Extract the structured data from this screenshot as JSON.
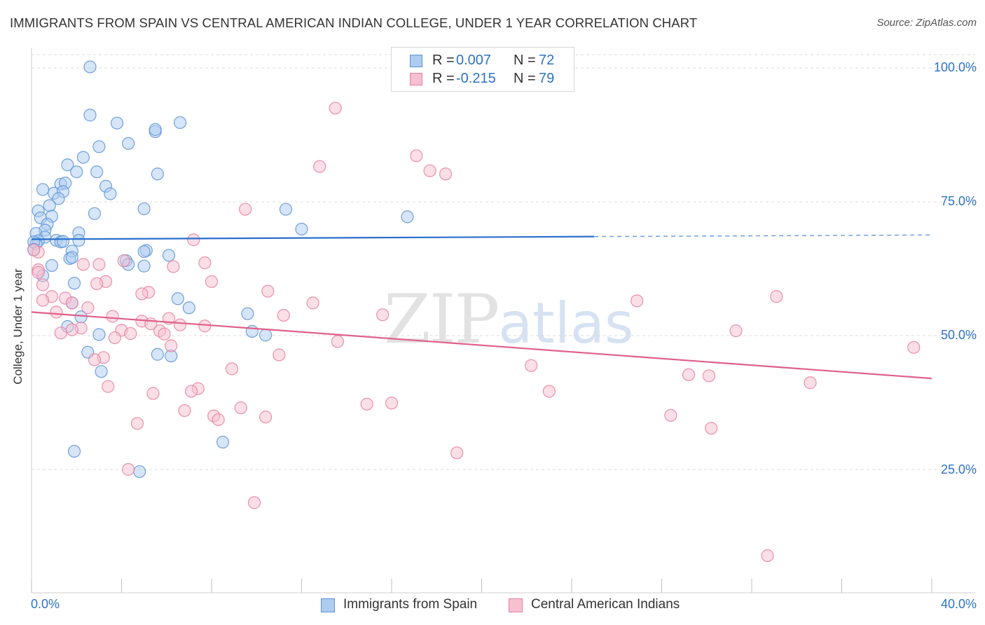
{
  "title": "IMMIGRANTS FROM SPAIN VS CENTRAL AMERICAN INDIAN COLLEGE, UNDER 1 YEAR CORRELATION CHART",
  "source": "Source: ZipAtlas.com",
  "watermark": {
    "zip": "ZIP",
    "atlas": "atlas"
  },
  "colors": {
    "blue_fill": "#aecbf0",
    "blue_stroke": "#5b93d6",
    "blue_line": "#2a6fcc",
    "pink_fill": "#f6c0d0",
    "pink_stroke": "#e87fa0",
    "pink_line": "#e0608a",
    "tick_text": "#2f72c4",
    "grid": "#dcdcdc"
  },
  "legend": {
    "series1": {
      "r_label": "R =",
      "r_value": "0.007",
      "n_label": "N =",
      "n_value": "72"
    },
    "series2": {
      "r_label": "R =",
      "r_value": "-0.215",
      "n_label": "N =",
      "n_value": "79"
    }
  },
  "bottom_legend": {
    "series1": "Immigrants from Spain",
    "series2": "Central American Indians"
  },
  "chart_data": {
    "type": "scatter",
    "title": "IMMIGRANTS FROM SPAIN VS CENTRAL AMERICAN INDIAN COLLEGE, UNDER 1 YEAR CORRELATION CHART",
    "xlabel": "",
    "ylabel": "College, Under 1 year",
    "xlim": [
      0,
      40
    ],
    "ylim": [
      0,
      102
    ],
    "x_tick_labels": [
      "0.0%",
      "40.0%"
    ],
    "y_tick_labels": [
      "100.0%",
      "75.0%",
      "50.0%",
      "25.0%"
    ],
    "y_ticks": [
      100,
      75,
      50,
      25
    ],
    "x_minor_ticks": [
      0,
      4,
      8,
      12,
      16,
      20,
      24,
      28,
      32,
      36,
      40
    ],
    "grid": true,
    "legend_position": "top-center",
    "series": [
      {
        "name": "Immigrants from Spain",
        "color": "#5b93d6",
        "trend": {
          "x": [
            0,
            25
          ],
          "y": [
            68.0,
            68.5
          ],
          "dashed_to_x": 40,
          "dashed_y_end": 68.8
        },
        "points": [
          [
            2.6,
            100.2
          ],
          [
            22.3,
            100.2
          ],
          [
            2.6,
            91.2
          ],
          [
            3.8,
            89.7
          ],
          [
            6.6,
            89.8
          ],
          [
            5.5,
            88.1
          ],
          [
            5.5,
            88.5
          ],
          [
            3.0,
            85.3
          ],
          [
            4.3,
            85.9
          ],
          [
            2.3,
            83.3
          ],
          [
            1.6,
            81.9
          ],
          [
            2.0,
            80.6
          ],
          [
            2.9,
            80.6
          ],
          [
            5.6,
            80.2
          ],
          [
            1.3,
            78.3
          ],
          [
            1.5,
            78.5
          ],
          [
            3.3,
            77.9
          ],
          [
            0.5,
            77.3
          ],
          [
            3.5,
            76.5
          ],
          [
            1.0,
            76.6
          ],
          [
            1.4,
            76.9
          ],
          [
            1.2,
            75.6
          ],
          [
            0.8,
            74.3
          ],
          [
            5.0,
            73.7
          ],
          [
            11.3,
            73.6
          ],
          [
            0.3,
            73.3
          ],
          [
            2.8,
            72.8
          ],
          [
            0.9,
            72.3
          ],
          [
            0.4,
            72.0
          ],
          [
            16.7,
            72.2
          ],
          [
            0.7,
            70.8
          ],
          [
            0.6,
            69.7
          ],
          [
            12.0,
            69.9
          ],
          [
            2.1,
            69.2
          ],
          [
            0.2,
            69.1
          ],
          [
            0.6,
            68.4
          ],
          [
            0.3,
            67.7
          ],
          [
            1.1,
            67.8
          ],
          [
            1.3,
            67.5
          ],
          [
            1.4,
            67.6
          ],
          [
            2.1,
            67.8
          ],
          [
            0.2,
            67.2
          ],
          [
            0.1,
            67.5
          ],
          [
            0.1,
            66.1
          ],
          [
            1.8,
            65.8
          ],
          [
            5.1,
            65.9
          ],
          [
            5.0,
            65.7
          ],
          [
            6.1,
            65.0
          ],
          [
            1.7,
            64.4
          ],
          [
            1.8,
            64.6
          ],
          [
            4.2,
            64.0
          ],
          [
            4.3,
            63.3
          ],
          [
            0.9,
            63.1
          ],
          [
            5.0,
            63.0
          ],
          [
            0.5,
            61.2
          ],
          [
            1.9,
            59.8
          ],
          [
            6.5,
            56.9
          ],
          [
            1.8,
            56.1
          ],
          [
            7.0,
            55.2
          ],
          [
            2.2,
            53.5
          ],
          [
            9.6,
            54.1
          ],
          [
            1.6,
            51.7
          ],
          [
            3.0,
            50.2
          ],
          [
            9.8,
            50.8
          ],
          [
            10.4,
            50.1
          ],
          [
            2.5,
            46.9
          ],
          [
            5.6,
            46.5
          ],
          [
            6.2,
            46.2
          ],
          [
            3.1,
            43.3
          ],
          [
            8.5,
            30.1
          ],
          [
            1.9,
            28.4
          ],
          [
            4.8,
            24.6
          ]
        ]
      },
      {
        "name": "Central American Indians",
        "color": "#e87fa0",
        "trend": {
          "x": [
            0,
            40
          ],
          "y": [
            54.4,
            42.0
          ]
        },
        "points": [
          [
            13.5,
            92.5
          ],
          [
            17.1,
            83.6
          ],
          [
            12.8,
            81.6
          ],
          [
            17.7,
            80.8
          ],
          [
            18.4,
            80.2
          ],
          [
            9.5,
            73.6
          ],
          [
            7.2,
            67.9
          ],
          [
            0.3,
            65.6
          ],
          [
            4.1,
            64.0
          ],
          [
            7.7,
            63.6
          ],
          [
            2.3,
            63.3
          ],
          [
            3.0,
            63.3
          ],
          [
            6.3,
            62.9
          ],
          [
            0.3,
            62.3
          ],
          [
            3.3,
            60.1
          ],
          [
            2.9,
            59.7
          ],
          [
            8.0,
            60.1
          ],
          [
            0.5,
            59.5
          ],
          [
            10.5,
            58.3
          ],
          [
            5.2,
            58.1
          ],
          [
            4.9,
            57.8
          ],
          [
            0.9,
            57.3
          ],
          [
            1.5,
            57.0
          ],
          [
            33.1,
            57.3
          ],
          [
            0.5,
            56.6
          ],
          [
            1.8,
            56.1
          ],
          [
            12.5,
            56.1
          ],
          [
            26.9,
            56.5
          ],
          [
            2.5,
            55.2
          ],
          [
            1.1,
            54.4
          ],
          [
            3.6,
            53.6
          ],
          [
            15.6,
            53.9
          ],
          [
            11.2,
            53.8
          ],
          [
            6.1,
            53.2
          ],
          [
            4.9,
            52.7
          ],
          [
            5.3,
            52.2
          ],
          [
            6.6,
            52.0
          ],
          [
            7.7,
            51.8
          ],
          [
            2.2,
            51.4
          ],
          [
            1.8,
            51.1
          ],
          [
            4.0,
            51.0
          ],
          [
            5.7,
            50.9
          ],
          [
            5.9,
            50.3
          ],
          [
            1.3,
            50.5
          ],
          [
            4.4,
            50.4
          ],
          [
            31.3,
            50.9
          ],
          [
            3.7,
            49.6
          ],
          [
            13.6,
            48.9
          ],
          [
            6.2,
            48.1
          ],
          [
            11.0,
            46.4
          ],
          [
            3.2,
            45.9
          ],
          [
            2.8,
            45.5
          ],
          [
            22.2,
            44.4
          ],
          [
            8.9,
            43.8
          ],
          [
            29.2,
            42.7
          ],
          [
            30.1,
            42.5
          ],
          [
            34.6,
            41.2
          ],
          [
            3.4,
            40.5
          ],
          [
            7.4,
            40.1
          ],
          [
            7.1,
            39.6
          ],
          [
            23.0,
            39.6
          ],
          [
            5.4,
            39.2
          ],
          [
            14.9,
            37.2
          ],
          [
            16.0,
            37.4
          ],
          [
            9.3,
            36.5
          ],
          [
            6.8,
            36.0
          ],
          [
            8.1,
            35.0
          ],
          [
            28.4,
            35.1
          ],
          [
            10.4,
            34.8
          ],
          [
            8.3,
            34.3
          ],
          [
            4.7,
            33.6
          ],
          [
            30.2,
            32.7
          ],
          [
            18.9,
            28.1
          ],
          [
            4.3,
            25.0
          ],
          [
            9.9,
            18.8
          ],
          [
            32.7,
            8.9
          ],
          [
            39.2,
            47.8
          ],
          [
            0.1,
            66.0
          ],
          [
            0.3,
            61.8
          ]
        ]
      }
    ]
  }
}
